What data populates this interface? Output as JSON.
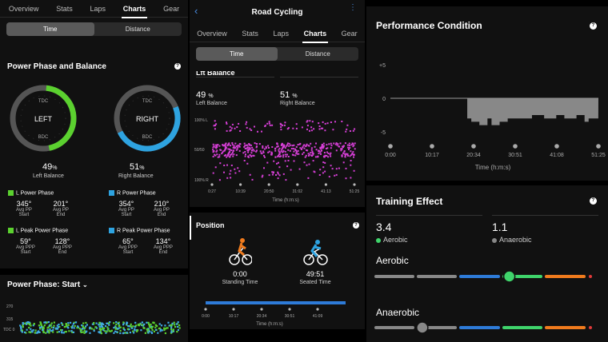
{
  "left_panel": {
    "tabs": [
      "Overview",
      "Stats",
      "Laps",
      "Charts",
      "Gear"
    ],
    "active_tab": "Charts",
    "toggle": [
      "Time",
      "Distance"
    ],
    "section_title": "Power Phase and Balance",
    "left_gauge": {
      "top": "TDC",
      "bottom": "BDC",
      "center": "LEFT",
      "value": "49",
      "unit": "%",
      "label": "Left Balance",
      "color": "#5bd12f",
      "fraction": 0.49
    },
    "right_gauge": {
      "top": "TDC",
      "bottom": "BDC",
      "center": "RIGHT",
      "value": "51",
      "unit": "%",
      "label": "Right Balance",
      "color": "#2ea3e0",
      "fraction": 0.51
    },
    "l_power_phase": {
      "title": "L Power Phase",
      "v1": "345°",
      "l1": "Avg PP",
      "s1": "Start",
      "v2": "201°",
      "l2": "Avg PP",
      "s2": "End"
    },
    "r_power_phase": {
      "title": "R Power Phase",
      "v1": "354°",
      "l1": "Avg PP",
      "s1": "Start",
      "v2": "210°",
      "l2": "Avg PP",
      "s2": "End"
    },
    "l_peak_phase": {
      "title": "L Peak Power Phase",
      "v1": "59°",
      "l1": "Avg PPP",
      "s1": "Start",
      "v2": "128°",
      "l2": "Avg PPP",
      "s2": "End"
    },
    "r_peak_phase": {
      "title": "R Peak Power Phase",
      "v1": "65°",
      "l1": "Avg PPP",
      "s1": "Start",
      "v2": "134°",
      "l2": "Avg PPP",
      "s2": "End"
    },
    "phase_start_title": "Power Phase: Start",
    "mini_y_ticks": [
      "270",
      "315",
      "TDC 0"
    ]
  },
  "middle_panel": {
    "header_title": "Road Cycling",
    "tabs": [
      "Overview",
      "Stats",
      "Laps",
      "Charts",
      "Gear"
    ],
    "active_tab": "Charts",
    "toggle": [
      "Time",
      "Distance"
    ],
    "section_title_partial": "Lft Balance",
    "left_value": "49",
    "left_unit": "%",
    "left_label": "Left Balance",
    "right_value": "51",
    "right_unit": "%",
    "right_label": "Right Balance",
    "position_title": "Position",
    "standing_time": "0:00",
    "standing_label": "Standing Time",
    "seated_time": "49:51",
    "seated_label": "Seated Time",
    "x_axis_title": "Time (h:m:s)"
  },
  "right_panel": {
    "perf_title": "Performance Condition",
    "training_title": "Training Effect",
    "aerobic_value": "3.4",
    "aerobic_label": "Aerobic",
    "anaerobic_value": "1.1",
    "anaerobic_label": "Anaerobic",
    "aerobic_bar_label": "Aerobic",
    "anaerobic_bar_label": "Anaerobic",
    "aerobic_level": 0.62,
    "anaerobic_level": 0.22,
    "aerobic_dot_color": "#3fd46b",
    "anaerobic_dot_color": "#888888"
  },
  "chart_data": [
    {
      "type": "scatter",
      "title": "",
      "y_tick_labels": [
        "100% L",
        "50/50",
        "100% R"
      ],
      "x_tick_labels": [
        "0:27",
        "10:39",
        "20:50",
        "31:02",
        "41:13",
        "51:25"
      ],
      "xlabel": "Time (h:m:s)",
      "series": [
        {
          "color": "#d63fd6",
          "values_note_free": []
        }
      ]
    },
    {
      "type": "bar",
      "title": "Position",
      "x_tick_labels": [
        "0:00",
        "10:17",
        "20:34",
        "30:51",
        "41:09"
      ],
      "xlabel": "Time (h:m:s)",
      "series": [
        {
          "name": "Seated Time",
          "value": "49:51"
        },
        {
          "name": "Standing Time",
          "value": "0:00"
        }
      ]
    },
    {
      "type": "area",
      "title": "Performance Condition",
      "y_tick_labels": [
        "+5",
        "0",
        "-5"
      ],
      "x_tick_labels": [
        "0:00",
        "10:17",
        "20:34",
        "30:51",
        "41:08",
        "51:25"
      ],
      "xlabel": "Time (h:m:s)",
      "x": [
        0,
        19,
        20,
        22,
        24,
        25,
        27,
        29,
        31,
        33,
        35,
        38,
        41,
        43,
        46,
        48,
        49,
        51.4
      ],
      "y": [
        0,
        -3,
        -3.5,
        -4,
        -3,
        -4,
        -3.5,
        -3,
        -3,
        -3,
        -2.5,
        -3,
        -2.5,
        -3,
        -2.5,
        -3.5,
        -3,
        -3
      ],
      "ylim": [
        -6,
        6
      ]
    },
    {
      "type": "scatter",
      "title": "Power Phase: Start",
      "y_tick_labels": [
        "270",
        "315",
        "TDC 0"
      ],
      "series": [
        {
          "color": "#3fa9e6"
        },
        {
          "color": "#5bd12f"
        }
      ]
    }
  ]
}
